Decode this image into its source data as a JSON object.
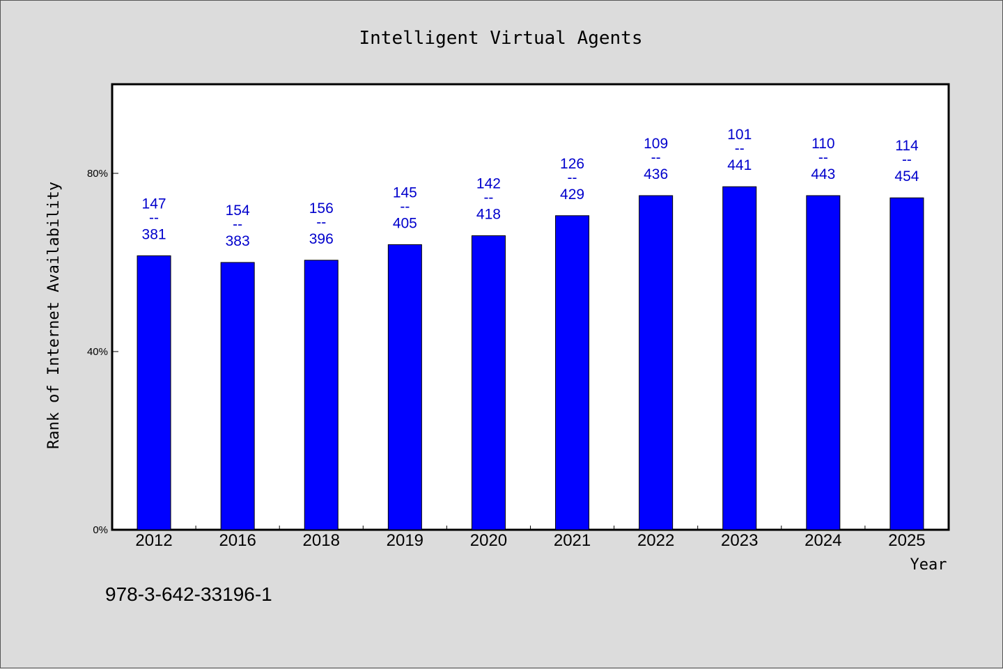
{
  "colors": {
    "background": "#dcdcdc",
    "plot_background": "#ffffff",
    "bar": "#0000ff",
    "label": "#0000cc"
  },
  "chart_data": {
    "type": "bar",
    "title": "Intelligent Virtual Agents",
    "xlabel": "Year",
    "ylabel": "Rank of Internet Availability",
    "categories": [
      "2012",
      "2016",
      "2018",
      "2019",
      "2020",
      "2021",
      "2022",
      "2023",
      "2024",
      "2025"
    ],
    "values": [
      61.5,
      60,
      60.5,
      64,
      66,
      70.5,
      75,
      77,
      75,
      74.5
    ],
    "labels_top": [
      "147",
      "154",
      "156",
      "145",
      "142",
      "126",
      "109",
      "101",
      "110",
      "114"
    ],
    "labels_bottom": [
      "381",
      "383",
      "396",
      "405",
      "418",
      "429",
      "436",
      "441",
      "443",
      "454"
    ],
    "label_separator": "--",
    "ylim": [
      0,
      100
    ],
    "yticks": [
      0,
      40,
      80
    ],
    "ytick_labels": [
      "0%",
      "40%",
      "80%"
    ],
    "grid": false,
    "legend": "none"
  },
  "annotation": "978-3-642-33196-1"
}
